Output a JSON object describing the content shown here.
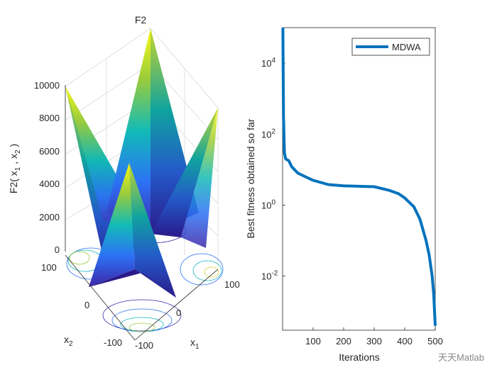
{
  "chart_data": [
    {
      "type": "surface",
      "title": "F2",
      "zlabel": "F2( x",
      "zlabel_sub1": "1",
      "zlabel_mid": " , x",
      "zlabel_sub2": "2",
      "zlabel_end": " )",
      "xlabel": "x",
      "xlabel_sub": "1",
      "ylabel": "x",
      "ylabel_sub": "2",
      "zticks": [
        "0",
        "2000",
        "4000",
        "6000",
        "8000",
        "10000"
      ],
      "xticks": [
        "-100",
        "0",
        "100"
      ],
      "yticks": [
        "-100",
        "0",
        "100"
      ],
      "zlim": [
        0,
        10000
      ],
      "xlim": [
        -100,
        100
      ],
      "ylim": [
        -100,
        100
      ],
      "colormap": "parula",
      "contour_below": true
    },
    {
      "type": "line",
      "xlabel": "Iterations",
      "ylabel": "Best fitness obtained so far",
      "yscale": "log",
      "xlim": [
        0,
        500
      ],
      "ylim": [
        0.0003,
        100000
      ],
      "xticks": [
        "100",
        "200",
        "300",
        "400",
        "500"
      ],
      "yticks": [
        {
          "base": "10",
          "exp": "-2"
        },
        {
          "base": "10",
          "exp": "0"
        },
        {
          "base": "10",
          "exp": "2"
        },
        {
          "base": "10",
          "exp": "4"
        }
      ],
      "legend_position": "top-right",
      "series": [
        {
          "name": "MDWA",
          "color": "#0072BD",
          "x": [
            1,
            3,
            6,
            10,
            20,
            30,
            50,
            80,
            100,
            150,
            200,
            250,
            300,
            350,
            380,
            400,
            430,
            450,
            470,
            480,
            490,
            495,
            500
          ],
          "y": [
            100000,
            300,
            30,
            20,
            18,
            12,
            8,
            6,
            5,
            3.8,
            3.5,
            3.4,
            3.3,
            2.6,
            2.1,
            1.6,
            0.9,
            0.4,
            0.1,
            0.04,
            0.01,
            0.003,
            0.0004
          ]
        }
      ]
    }
  ],
  "watermark": "天天Matlab"
}
